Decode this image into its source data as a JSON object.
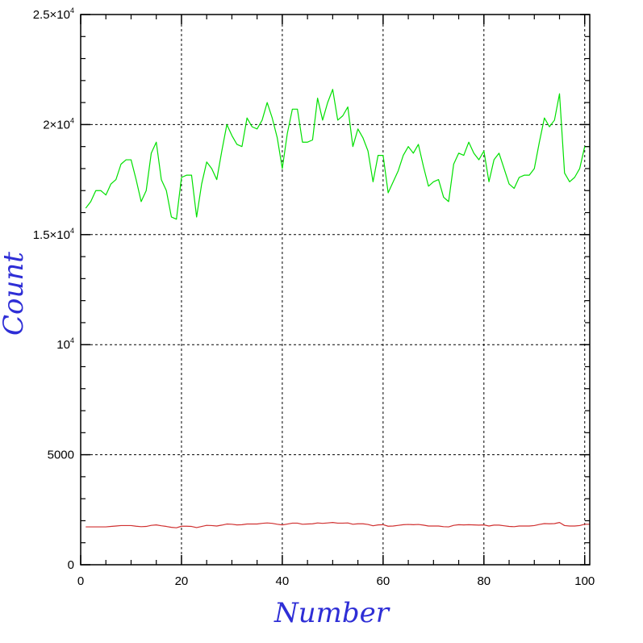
{
  "chart_data": {
    "type": "line",
    "title": "",
    "xlabel": "Number",
    "ylabel": "Count",
    "xlim": [
      0,
      101
    ],
    "ylim": [
      0,
      25000
    ],
    "grid": true,
    "x_ticks": [
      0,
      20,
      40,
      60,
      80,
      100
    ],
    "y_ticks": [
      0,
      5000,
      10000,
      15000,
      20000,
      25000
    ],
    "x_tick_labels": [
      "0",
      "20",
      "40",
      "60",
      "80",
      "100"
    ],
    "y_tick_labels": [
      {
        "base": "0",
        "sup": ""
      },
      {
        "base": "5000",
        "sup": ""
      },
      {
        "base": "10",
        "sup": "4"
      },
      {
        "base": "1.5×10",
        "sup": "4"
      },
      {
        "base": "2×10",
        "sup": "4"
      },
      {
        "base": "2.5×10",
        "sup": "4"
      }
    ],
    "x": [
      1,
      2,
      3,
      4,
      5,
      6,
      7,
      8,
      9,
      10,
      11,
      12,
      13,
      14,
      15,
      16,
      17,
      18,
      19,
      20,
      21,
      22,
      23,
      24,
      25,
      26,
      27,
      28,
      29,
      30,
      31,
      32,
      33,
      34,
      35,
      36,
      37,
      38,
      39,
      40,
      41,
      42,
      43,
      44,
      45,
      46,
      47,
      48,
      49,
      50,
      51,
      52,
      53,
      54,
      55,
      56,
      57,
      58,
      59,
      60,
      61,
      62,
      63,
      64,
      65,
      66,
      67,
      68,
      69,
      70,
      71,
      72,
      73,
      74,
      75,
      76,
      77,
      78,
      79,
      80,
      81,
      82,
      83,
      84,
      85,
      86,
      87,
      88,
      89,
      90,
      91,
      92,
      93,
      94,
      95,
      96,
      97,
      98,
      99,
      100,
      101
    ],
    "series": [
      {
        "color": "#00e000",
        "values": [
          16200,
          16500,
          17000,
          17000,
          16800,
          17300,
          17500,
          18200,
          18400,
          18400,
          17500,
          16500,
          17000,
          18700,
          19200,
          17500,
          17000,
          15800,
          15700,
          17600,
          17700,
          17700,
          15800,
          17300,
          18300,
          18000,
          17500,
          18800,
          20000,
          19500,
          19100,
          19000,
          20300,
          19900,
          19800,
          20200,
          21000,
          20300,
          19400,
          18000,
          19600,
          20700,
          20700,
          19200,
          19200,
          19300,
          21200,
          20200,
          21000,
          21600,
          20200,
          20400,
          20800,
          19000,
          19800,
          19400,
          18800,
          17400,
          18600,
          18600,
          16900,
          17400,
          17900,
          18600,
          19000,
          18700,
          19100,
          18100,
          17200,
          17400,
          17500,
          16700,
          16500,
          18200,
          18700,
          18600,
          19200,
          18700,
          18400,
          18800,
          17400,
          18400,
          18700,
          18000,
          17300,
          17100,
          17600,
          17700,
          17700,
          18000,
          19200,
          20300,
          19900,
          20200,
          21400,
          17800,
          17400,
          17600,
          18000,
          19000,
          19000
        ]
      },
      {
        "color": "#d03030",
        "values": [
          1720,
          1720,
          1720,
          1720,
          1720,
          1740,
          1760,
          1780,
          1780,
          1780,
          1750,
          1730,
          1740,
          1790,
          1810,
          1770,
          1740,
          1700,
          1680,
          1750,
          1750,
          1740,
          1690,
          1740,
          1790,
          1780,
          1760,
          1800,
          1850,
          1840,
          1810,
          1820,
          1850,
          1850,
          1850,
          1880,
          1900,
          1880,
          1840,
          1810,
          1850,
          1890,
          1890,
          1840,
          1850,
          1860,
          1900,
          1880,
          1900,
          1920,
          1890,
          1890,
          1900,
          1840,
          1860,
          1860,
          1830,
          1770,
          1810,
          1820,
          1750,
          1760,
          1790,
          1820,
          1830,
          1820,
          1830,
          1800,
          1760,
          1760,
          1760,
          1730,
          1720,
          1790,
          1820,
          1810,
          1820,
          1810,
          1800,
          1810,
          1760,
          1800,
          1800,
          1770,
          1740,
          1730,
          1760,
          1760,
          1760,
          1780,
          1830,
          1870,
          1860,
          1870,
          1920,
          1780,
          1760,
          1760,
          1780,
          1840,
          1840
        ]
      }
    ]
  }
}
